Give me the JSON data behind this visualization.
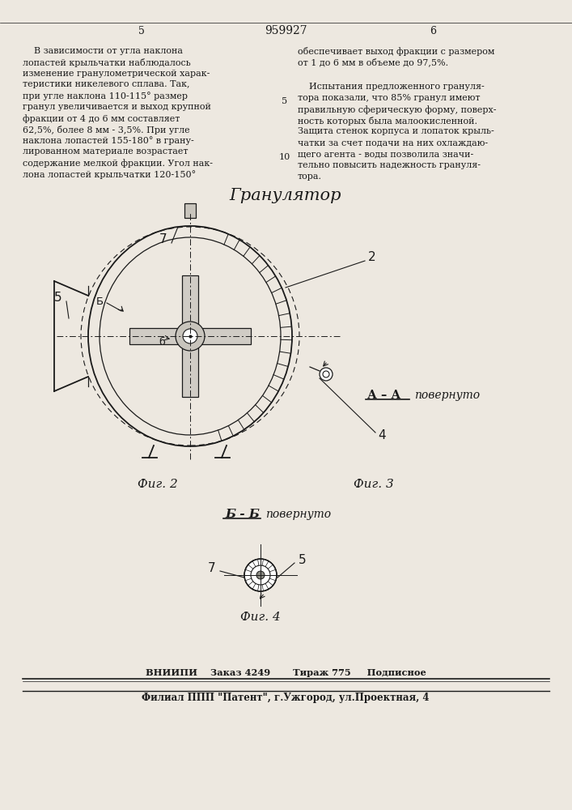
{
  "bg_color": "#ede8e0",
  "text_color": "#1a1a1a",
  "page_number_left": "5",
  "page_number_center": "959927",
  "page_number_right": "6",
  "col1_text": "    В зависимости от угла наклона\nлопастей крыльчатки наблюдалось\nизменение гранулометрической харак-\nтеристики никелевого сплава. Так,\nпри угле наклона 110-115° размер\nгранул увеличивается и выход крупной\nфракции от 4 до 6 мм составляет\n62,5%, более 8 мм - 3,5%. При угле\nнаклона лопастей 155-180° в грану-\nлированном материале возрастает\nсодержание мелкой фракции. Угол нак-\nлона лопастей крыльчатки 120-150°",
  "col2_line1": "обеспечивает выход фракции с размером",
  "col2_line2": "от 1 до 6 мм в объеме до 97,5%.",
  "col2_para2": "    Испытания предложенного грануля-\nтора показали, что 85% гранул имеют\nправильную сферическую форму, поверх-\nность которых была малоокисленной.\nЗащита стенок корпуса и лопаток крыль-\nчатки за счет подачи на них охлаждаю-\nщего агента - воды позволила значи-\nтельно повысить надежность грануля-\nтора.",
  "linenum_5": "5",
  "linenum_10": "10",
  "title_italic": "Гранулятор",
  "fig2_label": "Фиг. 2",
  "fig3_label": "Фиг. 3",
  "fig4_label": "Фиг. 4",
  "section_BB": "Б - Б",
  "section_BB_sub": "повернуто",
  "section_AA": "А – А",
  "section_AA_sub": "повернуто",
  "footer1": "ВНИИПИ    Заказ 4249       Тираж 775     Подписное",
  "footer2": "Филиал ППП \"Патент\", г.Ужгород, ул.Проектная, 4",
  "label_2": "2",
  "label_4": "4",
  "label_5": "5",
  "label_7": "7",
  "label_b_upper": "Б",
  "label_b_lower": "б"
}
